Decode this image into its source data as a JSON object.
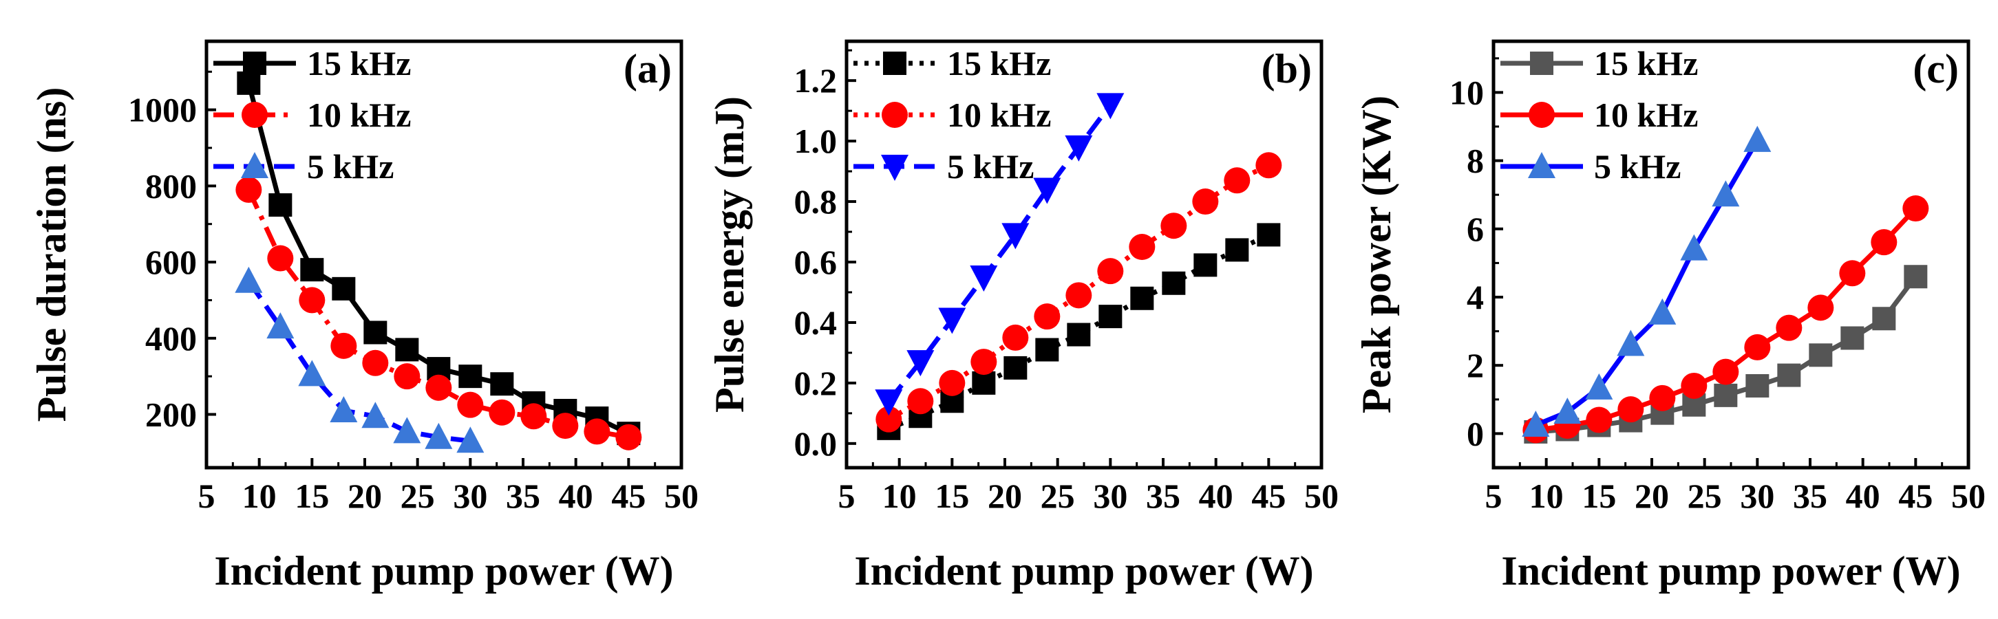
{
  "chart_data": [
    {
      "type": "line",
      "panel_label": "(a)",
      "xlabel": "Incident pump power (W)",
      "ylabel": "Pulse duration (ns)",
      "xlim": [
        5,
        50
      ],
      "ylim": [
        60,
        1180
      ],
      "xticks": [
        "5",
        "10",
        "15",
        "20",
        "25",
        "30",
        "35",
        "40",
        "45",
        "50"
      ],
      "yticks": [
        "200",
        "400",
        "600",
        "800",
        "1000"
      ],
      "legend": [
        "15 kHz",
        "10 kHz",
        "5 kHz"
      ],
      "series": [
        {
          "name": "15 kHz",
          "color": "#000000",
          "marker": "square",
          "dash": "solid",
          "x": [
            9,
            12,
            15,
            18,
            21,
            24,
            27,
            30,
            33,
            36,
            39,
            42,
            45
          ],
          "y": [
            1070,
            750,
            580,
            530,
            415,
            370,
            320,
            300,
            280,
            230,
            210,
            190,
            150
          ]
        },
        {
          "name": "10 kHz",
          "color": "#ff0000",
          "marker": "circle",
          "dash": "dashdot",
          "x": [
            9,
            12,
            15,
            18,
            21,
            24,
            27,
            30,
            33,
            36,
            39,
            42,
            45
          ],
          "y": [
            790,
            610,
            500,
            380,
            335,
            300,
            270,
            225,
            205,
            195,
            170,
            155,
            140
          ]
        },
        {
          "name": "5 kHz",
          "color": "#0000ff",
          "markerColor": "#3a78d8",
          "marker": "triangle-up",
          "dash": "dashed",
          "x": [
            9,
            12,
            15,
            18,
            21,
            24,
            27,
            30
          ],
          "y": [
            550,
            430,
            305,
            210,
            195,
            155,
            140,
            130
          ]
        }
      ]
    },
    {
      "type": "line",
      "panel_label": "(b)",
      "xlabel": "Incident pump power (W)",
      "ylabel": "Pulse energy (mJ)",
      "xlim": [
        5,
        50
      ],
      "ylim": [
        -0.08,
        1.33
      ],
      "xticks": [
        "5",
        "10",
        "15",
        "20",
        "25",
        "30",
        "35",
        "40",
        "45",
        "50"
      ],
      "yticks": [
        "0.0",
        "0.2",
        "0.4",
        "0.6",
        "0.8",
        "1.0",
        "1.2"
      ],
      "legend": [
        "15 kHz",
        "10 kHz",
        "5 kHz"
      ],
      "series": [
        {
          "name": "15 kHz",
          "color": "#000000",
          "marker": "square",
          "dash": "dotted",
          "x": [
            9,
            12,
            15,
            18,
            21,
            24,
            27,
            30,
            33,
            36,
            39,
            42,
            45
          ],
          "y": [
            0.05,
            0.09,
            0.14,
            0.2,
            0.25,
            0.31,
            0.36,
            0.42,
            0.48,
            0.53,
            0.59,
            0.64,
            0.69
          ]
        },
        {
          "name": "10 kHz",
          "color": "#ff0000",
          "marker": "circle",
          "dash": "dotted",
          "x": [
            9,
            12,
            15,
            18,
            21,
            24,
            27,
            30,
            33,
            36,
            39,
            42,
            45
          ],
          "y": [
            0.08,
            0.14,
            0.2,
            0.27,
            0.35,
            0.42,
            0.49,
            0.57,
            0.65,
            0.72,
            0.8,
            0.87,
            0.92
          ]
        },
        {
          "name": "5 kHz",
          "color": "#0000ff",
          "markerColor": "#0000ff",
          "marker": "triangle-down",
          "dash": "dashed",
          "x": [
            9,
            12,
            15,
            18,
            21,
            24,
            27,
            30
          ],
          "y": [
            0.14,
            0.27,
            0.41,
            0.55,
            0.69,
            0.84,
            0.98,
            1.12
          ]
        }
      ]
    },
    {
      "type": "line",
      "panel_label": "(c)",
      "xlabel": "Incident pump power (W)",
      "ylabel": "Peak power (KW)",
      "xlim": [
        5,
        50
      ],
      "ylim": [
        -1,
        11.5
      ],
      "xticks": [
        "5",
        "10",
        "15",
        "20",
        "25",
        "30",
        "35",
        "40",
        "45",
        "50"
      ],
      "yticks": [
        "0",
        "2",
        "4",
        "6",
        "8",
        "10"
      ],
      "legend": [
        "15 kHz",
        "10 kHz",
        "5 kHz"
      ],
      "series": [
        {
          "name": "15 kHz",
          "color": "#555555",
          "marker": "square",
          "dash": "solid",
          "x": [
            9,
            12,
            15,
            18,
            21,
            24,
            27,
            30,
            33,
            36,
            39,
            42,
            45
          ],
          "y": [
            0.05,
            0.12,
            0.24,
            0.38,
            0.6,
            0.84,
            1.12,
            1.4,
            1.71,
            2.3,
            2.8,
            3.37,
            4.6
          ]
        },
        {
          "name": "10 kHz",
          "color": "#ff0000",
          "marker": "circle",
          "dash": "solid",
          "x": [
            9,
            12,
            15,
            18,
            21,
            24,
            27,
            30,
            33,
            36,
            39,
            42,
            45
          ],
          "y": [
            0.1,
            0.23,
            0.4,
            0.71,
            1.04,
            1.4,
            1.81,
            2.53,
            3.1,
            3.69,
            4.7,
            5.61,
            6.6
          ]
        },
        {
          "name": "5 kHz",
          "color": "#0000ff",
          "markerColor": "#3a78d8",
          "marker": "triangle-up",
          "dash": "solid",
          "x": [
            9,
            12,
            15,
            18,
            21,
            24,
            27,
            30
          ],
          "y": [
            0.25,
            0.63,
            1.34,
            2.62,
            3.54,
            5.42,
            7.0,
            8.6
          ]
        }
      ]
    }
  ]
}
